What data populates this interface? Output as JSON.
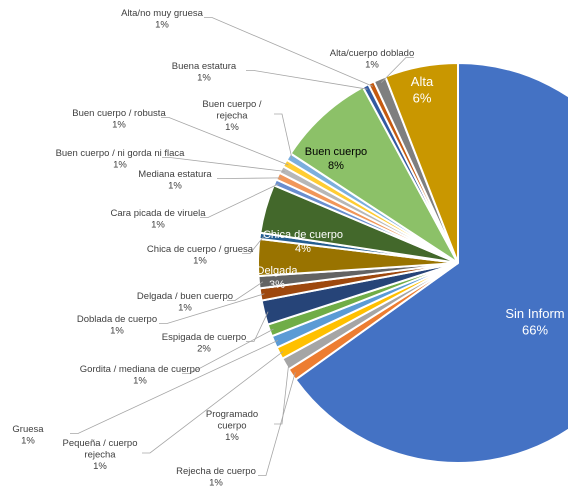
{
  "chart_data": {
    "type": "pie",
    "title": "",
    "start_angle_deg": 0,
    "direction": "clockwise",
    "slices": [
      {
        "label": "Sin Información",
        "display_label": "Sin Inform",
        "value": 66,
        "value_label": "66%",
        "color": "#4472c4",
        "label_mode": "inside",
        "label_color": "#ffffff"
      },
      {
        "label": "Rejecha de cuerpo",
        "value": 1,
        "value_label": "1%",
        "color": "#ed7d31",
        "label_mode": "outside"
      },
      {
        "label": "Programado cuerpo",
        "value": 1,
        "value_label": "1%",
        "color": "#a5a5a5",
        "label_mode": "outside"
      },
      {
        "label": "Pequeña / cuerpo rejecha",
        "value": 1,
        "value_label": "1%",
        "color": "#ffc000",
        "label_mode": "outside"
      },
      {
        "label": "Gruesa",
        "value": 1,
        "value_label": "1%",
        "color": "#5b9bd5",
        "label_mode": "outside"
      },
      {
        "label": "Gordita / mediana de cuerpo",
        "value": 1,
        "value_label": "1%",
        "color": "#70ad47",
        "label_mode": "outside"
      },
      {
        "label": "Espigada de cuerpo",
        "value": 2,
        "value_label": "2%",
        "color": "#264478",
        "label_mode": "outside"
      },
      {
        "label": "Doblada de cuerpo",
        "value": 1,
        "value_label": "1%",
        "color": "#9e480e",
        "label_mode": "outside"
      },
      {
        "label": "Delgada / buen cuerpo",
        "value": 1,
        "value_label": "1%",
        "color": "#636363",
        "label_mode": "outside"
      },
      {
        "label": "Delgada",
        "value": 3,
        "value_label": "3%",
        "color": "#997300",
        "label_mode": "inside",
        "label_color": "#ffffff"
      },
      {
        "label": "Chica de cuerpo / gruesa",
        "value": 0.5,
        "value_label": "1%",
        "color": "#255e91",
        "label_mode": "outside"
      },
      {
        "label": "Chica de cuerpo",
        "value": 4,
        "value_label": "4%",
        "color": "#43682b",
        "label_mode": "inside",
        "label_color": "#ffffff"
      },
      {
        "label": "Cara picada de viruela",
        "value": 0.5,
        "value_label": "1%",
        "color": "#698ed0",
        "label_mode": "outside"
      },
      {
        "label": "Mediana estatura",
        "value": 0.6,
        "value_label": "1%",
        "color": "#f1975a",
        "label_mode": "outside"
      },
      {
        "label": "Buen cuerpo /  ni gorda ni flaca",
        "value": 0.6,
        "value_label": "1%",
        "color": "#b7b7b7",
        "label_mode": "outside"
      },
      {
        "label": "Buen cuerpo / robusta",
        "value": 0.6,
        "value_label": "1%",
        "color": "#ffcd33",
        "label_mode": "outside"
      },
      {
        "label": "Buen cuerpo / rejecha",
        "value": 0.6,
        "value_label": "1%",
        "color": "#7cafdd",
        "label_mode": "outside"
      },
      {
        "label": "Buen cuerpo",
        "value": 8,
        "value_label": "8%",
        "color": "#8cc168",
        "label_mode": "inside",
        "label_color": "#000000"
      },
      {
        "label": "Buena estatura",
        "value": 0.5,
        "value_label": "1%",
        "color": "#335aa1",
        "label_mode": "outside"
      },
      {
        "label": "Alta/no muy gruesa",
        "value": 0.5,
        "value_label": "1%",
        "color": "#c55a11",
        "label_mode": "outside"
      },
      {
        "label": "Alta/cuerpo doblado",
        "value": 1,
        "value_label": "1%",
        "color": "#7f7f7f",
        "label_mode": "outside"
      },
      {
        "label": "Alta",
        "value": 6,
        "value_label": "6%",
        "color": "#c99700",
        "label_mode": "inside",
        "label_color": "#ffffff"
      }
    ]
  }
}
